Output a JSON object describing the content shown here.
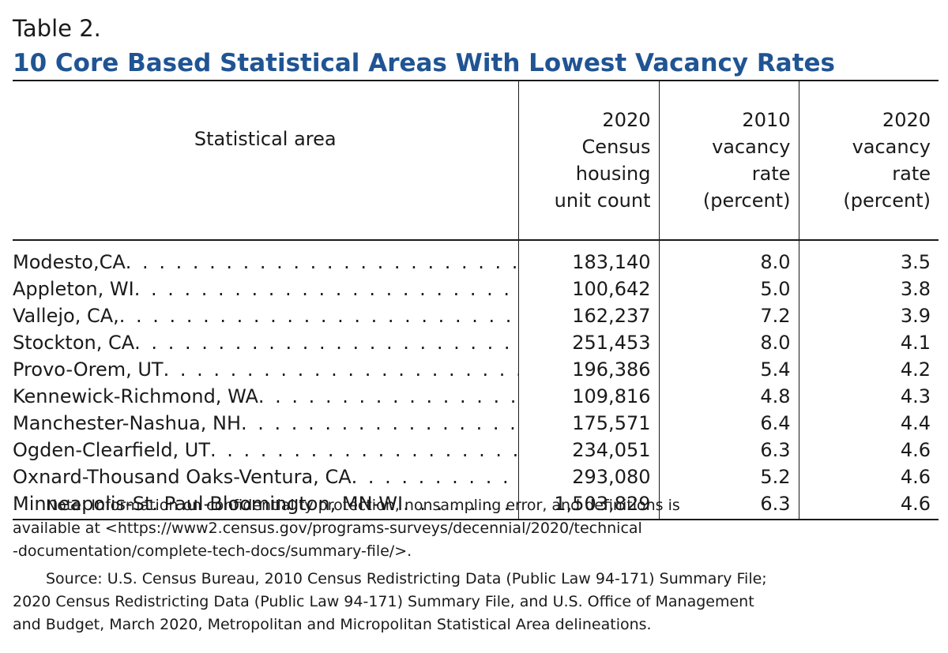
{
  "label": "Table 2.",
  "title": "10 Core Based Statistical Areas With Lowest Vacancy Rates",
  "columns": {
    "area": "Statistical area",
    "count": [
      "2020",
      "Census",
      "housing",
      "unit count"
    ],
    "rate2010": [
      "2010",
      "vacancy",
      "rate",
      "(percent)"
    ],
    "rate2020": [
      "2020",
      "vacancy",
      "rate",
      "(percent)"
    ]
  },
  "rows": [
    {
      "area": "Modesto,CA",
      "count": "183,140",
      "rate2010": "8.0",
      "rate2020": "3.5"
    },
    {
      "area": "Appleton, WI",
      "count": "100,642",
      "rate2010": "5.0",
      "rate2020": "3.8"
    },
    {
      "area": "Vallejo, CA,",
      "count": "162,237",
      "rate2010": "7.2",
      "rate2020": "3.9"
    },
    {
      "area": "Stockton, CA",
      "count": "251,453",
      "rate2010": "8.0",
      "rate2020": "4.1"
    },
    {
      "area": "Provo-Orem, UT",
      "count": "196,386",
      "rate2010": "5.4",
      "rate2020": "4.2"
    },
    {
      "area": "Kennewick-Richmond, WA",
      "count": "109,816",
      "rate2010": "4.8",
      "rate2020": "4.3"
    },
    {
      "area": "Manchester-Nashua, NH",
      "count": "175,571",
      "rate2010": "6.4",
      "rate2020": "4.4"
    },
    {
      "area": "Ogden-Clearfield, UT",
      "count": "234,051",
      "rate2010": "6.3",
      "rate2020": "4.6"
    },
    {
      "area": "Oxnard-Thousand Oaks-Ventura, CA",
      "count": "293,080",
      "rate2010": "5.2",
      "rate2020": "4.6"
    },
    {
      "area": "Minneapolis-St. Paul-Bloomington, MN-WI",
      "count": "1,503,829",
      "rate2010": "6.3",
      "rate2020": "4.6"
    }
  ],
  "note": {
    "line1": "Note: Information on confidentiality protection, nonsampling error, and definitions is",
    "line2": "available at <https://www2.census.gov/programs-surveys/decennial/2020/technical",
    "line3": "-documentation/complete-tech-docs/summary-file/>."
  },
  "source": {
    "line1": "Source: U.S. Census Bureau, 2010 Census Redistricting Data (Public Law 94-171) Summary File;",
    "line2": "2020 Census Redistricting Data (Public Law 94-171) Summary File, and U.S. Office of Management",
    "line3": "and Budget, March 2020, Metropolitan and Micropolitan Statistical Area delineations."
  }
}
